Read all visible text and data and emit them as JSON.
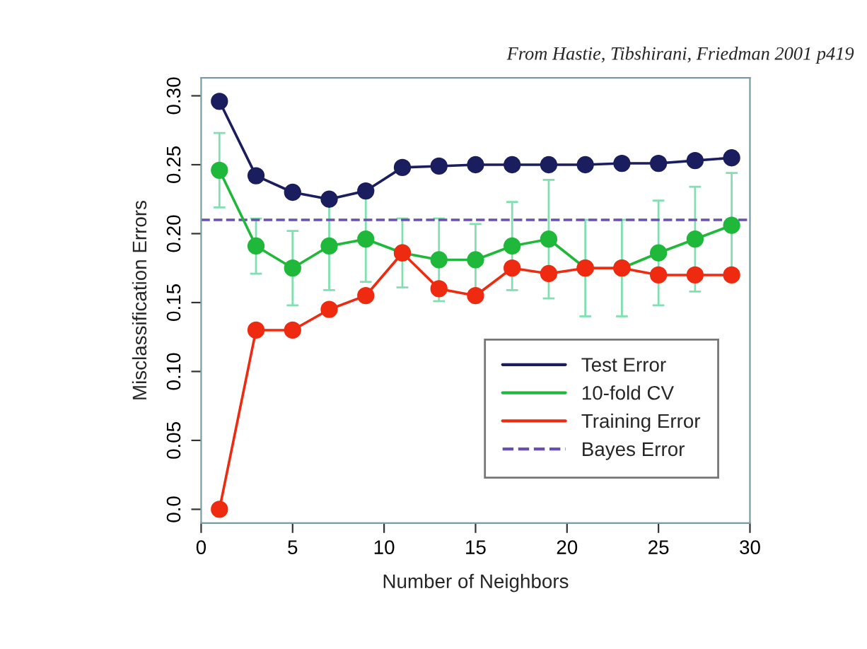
{
  "chart_data": {
    "type": "line",
    "xlabel": "Number of Neighbors",
    "ylabel": "Misclassification Errors",
    "annotations": [
      "From Hastie, Tibshirani, Friedman 2001 p419"
    ],
    "x": [
      1,
      3,
      5,
      7,
      9,
      11,
      13,
      15,
      17,
      19,
      21,
      23,
      25,
      27,
      29
    ],
    "series": [
      {
        "name": "Test Error",
        "color": "#1a1d5e",
        "values": [
          0.296,
          0.242,
          0.23,
          0.225,
          0.231,
          0.248,
          0.249,
          0.25,
          0.25,
          0.25,
          0.25,
          0.251,
          0.251,
          0.253,
          0.255
        ]
      },
      {
        "name": "10-fold CV",
        "color": "#1fb83a",
        "values": [
          0.246,
          0.191,
          0.175,
          0.191,
          0.196,
          0.186,
          0.181,
          0.181,
          0.191,
          0.196,
          0.175,
          0.175,
          0.186,
          0.196,
          0.206
        ],
        "errors": [
          0.027,
          0.02,
          0.027,
          0.032,
          0.031,
          0.025,
          0.03,
          0.026,
          0.032,
          0.043,
          0.035,
          0.035,
          0.038,
          0.038,
          0.038
        ]
      },
      {
        "name": "Training Error",
        "color": "#ee2a10",
        "values": [
          0.0,
          0.13,
          0.13,
          0.145,
          0.155,
          0.186,
          0.16,
          0.155,
          0.175,
          0.171,
          0.175,
          0.175,
          0.17,
          0.17,
          0.17
        ]
      }
    ],
    "ref_lines": [
      {
        "axis": "y",
        "value": 0.21,
        "label": "Bayes Error",
        "color": "#6a4fb0",
        "line_style": "dashed"
      }
    ],
    "xlim": [
      0,
      30
    ],
    "xticks": [
      0,
      5,
      10,
      15,
      20,
      25,
      30
    ],
    "ylim": [
      -0.01,
      0.313
    ],
    "yticks": [
      {
        "value": 0.0,
        "label": "0.0"
      },
      {
        "value": 0.05,
        "label": "0.05"
      },
      {
        "value": 0.1,
        "label": "0.10"
      },
      {
        "value": 0.15,
        "label": "0.15"
      },
      {
        "value": 0.2,
        "label": "0.20"
      },
      {
        "value": 0.25,
        "label": "0.25"
      },
      {
        "value": 0.3,
        "label": "0.30"
      }
    ],
    "grid": false,
    "legend": "bottom right",
    "marker": "circle",
    "line_style": "solid"
  }
}
